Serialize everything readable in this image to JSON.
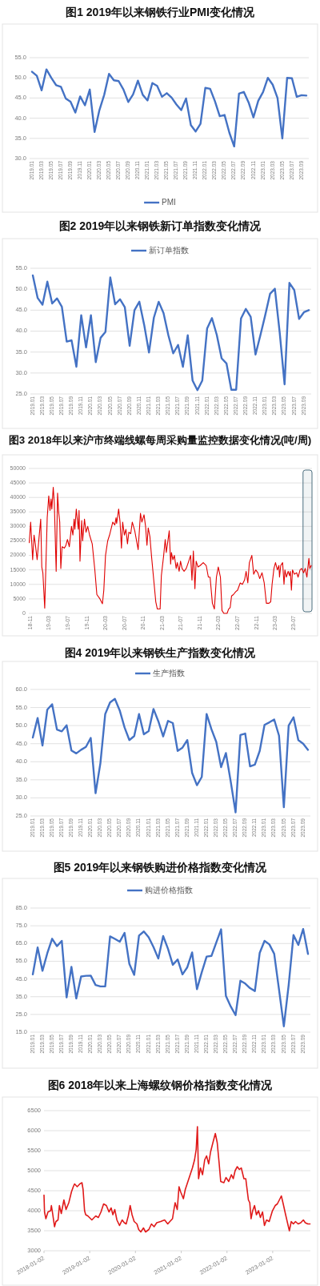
{
  "chart_data": [
    {
      "type": "line",
      "title": "图1 2019年以来钢铁行业PMI变化情况",
      "categories": [
        "2019.01",
        null,
        "2019.03",
        null,
        "2019.05",
        null,
        "2019.07",
        null,
        "2019.09",
        null,
        "2019.11",
        null,
        "2020.01",
        null,
        "2020.03",
        null,
        "2020.05",
        null,
        "2020.07",
        null,
        "2020.09",
        null,
        "2020.11",
        null,
        "2021.01",
        null,
        "2021.03",
        null,
        "2021.05",
        null,
        "2021.07",
        null,
        "2021.09",
        null,
        "2021.11",
        null,
        "2022.01",
        null,
        "2022.03",
        null,
        "2022.05",
        null,
        "2022.07",
        null,
        "2022.09",
        null,
        "2022.11",
        null,
        "2023.01",
        null,
        "2023.03",
        null,
        "2023.05",
        null,
        "2023.07",
        null,
        "2023.09",
        null
      ],
      "series": [
        {
          "name": "PMI",
          "color": "#4472c4",
          "values": [
            51.5,
            50.5,
            46.9,
            52.1,
            50.0,
            48.2,
            47.8,
            44.9,
            44.1,
            41.4,
            45.4,
            43.2,
            47.1,
            36.6,
            42.0,
            45.8,
            51.0,
            49.4,
            49.2,
            47.1,
            44.0,
            45.9,
            49.3,
            45.8,
            44.4,
            48.7,
            48.0,
            45.3,
            46.2,
            45.1,
            43.4,
            42.0,
            44.9,
            38.3,
            36.7,
            38.6,
            47.5,
            47.3,
            44.2,
            40.5,
            40.8,
            36.4,
            33.0,
            46.1,
            46.5,
            43.9,
            40.2,
            44.3,
            46.5,
            50.0,
            48.3,
            45.0,
            35.0,
            50.0,
            49.9,
            45.3,
            45.7,
            45.6
          ]
        }
      ],
      "ylim": [
        30,
        55
      ],
      "yticks": [
        {
          "value": 30,
          "label": "30.0"
        },
        {
          "value": 35,
          "label": "35.0"
        },
        {
          "value": 40,
          "label": "40.0"
        },
        {
          "value": 45,
          "label": "45.0"
        },
        {
          "value": 50,
          "label": "50.0"
        },
        {
          "value": 55,
          "label": "55.0"
        }
      ],
      "grid": "y",
      "legend": "bottom"
    },
    {
      "type": "line",
      "title": "图2 2019年以来钢铁新订单指数变化情况",
      "categories": [
        "2019.01",
        null,
        "2019.03",
        null,
        "2019.05",
        null,
        "2019.07",
        null,
        "2019.09",
        null,
        "2019.11",
        null,
        "2020.01",
        null,
        "2020.03",
        null,
        "2020.05",
        null,
        "2020.07",
        null,
        "2020.09",
        null,
        "2020.11",
        null,
        "2021.01",
        null,
        "2021.03",
        null,
        "2021.05",
        null,
        "2021.07",
        null,
        "2021.09",
        null,
        "2021.11",
        null,
        "2022.01",
        null,
        "2022.03",
        null,
        "2022.05",
        null,
        "2022.07",
        null,
        "2022.09",
        null,
        "2022.11",
        null,
        "2023.01",
        null,
        "2023.03",
        null,
        "2023.05",
        null,
        "2023.07",
        null,
        "2023.09",
        null
      ],
      "series": [
        {
          "name": "新订单指数",
          "color": "#4472c4",
          "values": [
            53.3,
            47.9,
            46.3,
            51.8,
            46.6,
            47.8,
            45.8,
            37.5,
            37.8,
            31.5,
            43.8,
            36.1,
            43.8,
            32.6,
            38.4,
            39.8,
            52.8,
            46.4,
            47.6,
            45.7,
            36.5,
            45.0,
            47.0,
            41.5,
            34.9,
            43.2,
            47.0,
            44.3,
            39.0,
            34.7,
            36.7,
            31.5,
            39.0,
            28.2,
            25.9,
            28.2,
            40.6,
            43.1,
            39.1,
            33.5,
            32.3,
            26.0,
            26.0,
            43.0,
            45.3,
            43.4,
            34.4,
            39.0,
            43.8,
            48.9,
            50.1,
            39.6,
            27.3,
            51.5,
            49.8,
            42.9,
            44.5,
            45.0
          ]
        }
      ],
      "ylim": [
        25,
        55
      ],
      "yticks": [
        {
          "value": 25,
          "label": "25.0"
        },
        {
          "value": 30,
          "label": "30.0"
        },
        {
          "value": 35,
          "label": "35.0"
        },
        {
          "value": 40,
          "label": "40.0"
        },
        {
          "value": 45,
          "label": "45.0"
        },
        {
          "value": 50,
          "label": "50.0"
        },
        {
          "value": 55,
          "label": "55.0"
        }
      ],
      "grid": "y",
      "legend": "top"
    },
    {
      "type": "line",
      "title": "图3 2018年以来沪市终端线螺每周采购量监控数据变化情况(吨/周)",
      "x": [
        "2018-10-23",
        "2018-11-01",
        "2018-11-14",
        "2018-11-23",
        "2018-12-01",
        "2018-12-13",
        "2018-12-25",
        "2019-01-05",
        "2019-01-12",
        "2019-01-19",
        "2019-01-31",
        "2019-02-16",
        "2019-02-26",
        "2019-03-06",
        "2019-03-13",
        "2019-03-18",
        "2019-03-27",
        "2019-04-03",
        "2019-04-15",
        "2019-04-24",
        "2019-05-01",
        "2019-05-08",
        "2019-05-15",
        "2019-05-23",
        "2019-06-07",
        "2019-06-17",
        "2019-06-27",
        "2019-07-09",
        "2019-07-23",
        "2019-08-01",
        "2019-08-09",
        "2019-08-14",
        "2019-08-23",
        "2019-09-05",
        "2019-09-10",
        "2019-09-16",
        "2019-09-27",
        "2019-10-03",
        "2019-10-15",
        "2019-10-25",
        "2019-11-05",
        "2019-11-17",
        "2019-12-04",
        "2019-12-21",
        "2020-01-03",
        "2020-01-23",
        "2020-02-08",
        "2020-02-17",
        "2020-02-28",
        "2020-03-13",
        "2020-03-25",
        "2020-04-15",
        "2020-04-28",
        "2020-05-06",
        "2020-05-10",
        "2020-05-23",
        "2020-06-01",
        "2020-06-10",
        "2020-06-18",
        "2020-06-29",
        "2020-07-09",
        "2020-07-19",
        "2020-07-28",
        "2020-08-09",
        "2020-08-19",
        "2020-09-04",
        "2020-09-26",
        "2020-10-11",
        "2020-10-20",
        "2020-11-03",
        "2020-11-13",
        "2020-11-22",
        "2020-11-30",
        "2020-12-11",
        "2020-12-21",
        "2021-01-04",
        "2021-01-18",
        "2021-01-28",
        "2021-02-15",
        "2021-02-23",
        "2021-03-10",
        "2021-03-20",
        "2021-03-27",
        "2021-04-05",
        "2021-04-15",
        "2021-04-24",
        "2021-04-29",
        "2021-05-09",
        "2021-05-18",
        "2021-05-30",
        "2021-06-06",
        "2021-06-18",
        "2021-06-27",
        "2021-07-07",
        "2021-07-20",
        "2021-08-03",
        "2021-08-19",
        "2021-08-31",
        "2021-09-09",
        "2021-09-18",
        "2021-09-28",
        "2021-10-06",
        "2021-10-18",
        "2021-11-01",
        "2021-11-21",
        "2021-12-10",
        "2021-12-24",
        "2022-01-04",
        "2022-01-19",
        "2022-02-01",
        "2022-02-14",
        "2022-02-26",
        "2022-03-12",
        "2022-03-22",
        "2022-04-03",
        "2022-04-24",
        "2022-05-04",
        "2022-05-14",
        "2022-05-23",
        "2022-06-04",
        "2022-06-19",
        "2022-07-01",
        "2022-07-18",
        "2022-08-01",
        "2022-08-15",
        "2022-08-25",
        "2022-09-05",
        "2022-09-15",
        "2022-10-01",
        "2022-10-13",
        "2022-10-26",
        "2022-11-09",
        "2022-11-21",
        "2022-12-06",
        "2022-12-20",
        "2023-01-03",
        "2023-01-20",
        "2023-01-31",
        "2023-02-09",
        "2023-02-21",
        "2023-03-03",
        "2023-03-15",
        "2023-03-25",
        "2023-03-29",
        "2023-04-06",
        "2023-04-18",
        "2023-04-27",
        "2023-05-03",
        "2023-05-12",
        "2023-05-24",
        "2023-06-02",
        "2023-06-07",
        "2023-06-14",
        "2023-06-21",
        "2023-07-03",
        "2023-07-18",
        "2023-07-27",
        "2023-08-09",
        "2023-08-19",
        "2023-09-01",
        "2023-09-11",
        "2023-09-22",
        "2023-10-05",
        "2023-10-11",
        "2023-10-20"
      ],
      "series": [
        {
          "color": "#e00000",
          "values": [
            24400,
            31500,
            18500,
            27000,
            24000,
            18500,
            26000,
            32500,
            16000,
            14000,
            1800,
            33000,
            40500,
            35500,
            39500,
            36000,
            43500,
            38000,
            14500,
            41500,
            35000,
            31500,
            15500,
            23000,
            22500,
            23500,
            25500,
            23000,
            30000,
            27000,
            32500,
            29000,
            36000,
            29000,
            35500,
            18000,
            32000,
            25000,
            32500,
            28000,
            30000,
            27000,
            24000,
            15000,
            6500,
            5000,
            3300,
            8000,
            20000,
            25000,
            27000,
            31500,
            30500,
            33000,
            31000,
            36000,
            31500,
            22500,
            31500,
            27000,
            29000,
            24000,
            28000,
            27500,
            31500,
            28500,
            22000,
            34500,
            31500,
            34000,
            30000,
            23500,
            29500,
            26500,
            20000,
            12000,
            4000,
            1500,
            1500,
            13000,
            20000,
            25500,
            21000,
            24500,
            28500,
            17000,
            21000,
            18500,
            20000,
            15500,
            17500,
            14500,
            18000,
            15500,
            14500,
            15500,
            18000,
            20000,
            11500,
            21500,
            8500,
            18000,
            16000,
            16500,
            17500,
            16500,
            12500,
            12500,
            3500,
            1500,
            12500,
            16000,
            12500,
            1000,
            0,
            0,
            1500,
            2000,
            6000,
            6500,
            7500,
            8000,
            10500,
            10000,
            11500,
            14500,
            10500,
            17500,
            20000,
            13500,
            15000,
            14000,
            12000,
            14000,
            10500,
            3500,
            3500,
            4000,
            10000,
            15500,
            17500,
            15000,
            16500,
            12500,
            16500,
            17500,
            10000,
            15000,
            12500,
            14500,
            13000,
            14500,
            8000,
            15000,
            13500,
            14000,
            12500,
            15000,
            15500,
            14000,
            15500,
            12500,
            19000,
            15500,
            16500
          ]
        }
      ],
      "xlim": [
        "2018-10-20",
        "2023-10-25"
      ],
      "xticks": [
        {
          "value": "2018-11-01",
          "label": "18-11"
        },
        {
          "value": "2019-03-01",
          "label": "19-03"
        },
        {
          "value": "2019-07-01",
          "label": "19-07"
        },
        {
          "value": "2019-11-01",
          "label": "19-11"
        },
        {
          "value": "2020-03-01",
          "label": "20-03"
        },
        {
          "value": "2020-07-01",
          "label": "20-07"
        },
        {
          "value": "2020-11-01",
          "label": "20-11"
        },
        {
          "value": "2021-03-01",
          "label": "21-03"
        },
        {
          "value": "2021-07-01",
          "label": "21-07"
        },
        {
          "value": "2021-11-01",
          "label": "21-11"
        },
        {
          "value": "2022-03-01",
          "label": "22-03"
        },
        {
          "value": "2022-07-01",
          "label": "22-07"
        },
        {
          "value": "2022-11-01",
          "label": "22-11"
        },
        {
          "value": "2023-03-01",
          "label": "23-03"
        },
        {
          "value": "2023-07-01",
          "label": "23-07"
        }
      ],
      "ylim": [
        0,
        50000
      ],
      "yticks": [
        0,
        5000,
        10000,
        15000,
        20000,
        25000,
        30000,
        35000,
        40000,
        45000,
        50000
      ],
      "grid": "y",
      "bands": [
        {
          "axis": "x",
          "from": "2023-08-28",
          "to": "2023-10-25",
          "color": "#4d6f7f"
        }
      ]
    },
    {
      "type": "line",
      "title": "图4 2019年以来钢铁生产指数变化情况",
      "categories": [
        "2019.01",
        null,
        "2019.03",
        null,
        "2019.05",
        null,
        "2019.07",
        null,
        "2019.09",
        null,
        "2019.11",
        null,
        "2020.01",
        null,
        "2020.03",
        null,
        "2020.05",
        null,
        "2020.07",
        null,
        "2020.09",
        null,
        "2020.11",
        null,
        "2021.01",
        null,
        "2021.03",
        null,
        "2021.05",
        null,
        "2021.07",
        null,
        "2021.09",
        null,
        "2021.11",
        null,
        "2022.01",
        null,
        "2022.03",
        null,
        "2022.05",
        null,
        "2022.07",
        null,
        "2022.09",
        null,
        "2022.11",
        null,
        "2023.01",
        null,
        "2023.03",
        null,
        "2023.05",
        null,
        "2023.07",
        null,
        "2023.09",
        null
      ],
      "series": [
        {
          "name": "生产指数",
          "color": "#4472c4",
          "values": [
            46.7,
            52.1,
            44.5,
            54.4,
            55.9,
            48.9,
            48.4,
            50.1,
            43.1,
            42.3,
            43.3,
            44.1,
            46.6,
            31.3,
            39.6,
            53.2,
            56.4,
            57.4,
            54.2,
            49.5,
            46.0,
            47.1,
            53.2,
            47.6,
            48.5,
            54.6,
            51.2,
            47.0,
            51.3,
            50.7,
            43.0,
            43.9,
            46.0,
            36.9,
            33.5,
            35.8,
            53.2,
            49.0,
            45.5,
            38.5,
            42.4,
            34.5,
            26.0,
            47.4,
            47.8,
            38.7,
            39.2,
            43.0,
            50.2,
            50.9,
            51.7,
            47.2,
            27.4,
            50.0,
            52.3,
            46.0,
            45.0,
            43.3
          ]
        }
      ],
      "ylim": [
        25,
        60
      ],
      "yticks": [
        {
          "value": 25,
          "label": "25.0"
        },
        {
          "value": 30,
          "label": "30.0"
        },
        {
          "value": 35,
          "label": "35.0"
        },
        {
          "value": 40,
          "label": "40.0"
        },
        {
          "value": 45,
          "label": "45.0"
        },
        {
          "value": 50,
          "label": "50.0"
        },
        {
          "value": 55,
          "label": "55.0"
        },
        {
          "value": 60,
          "label": "60.0"
        }
      ],
      "grid": "y",
      "legend": "top"
    },
    {
      "type": "line",
      "title": "图5 2019年以来钢铁购进价格指数变化情况",
      "categories": [
        "2019.01",
        null,
        "2019.03",
        null,
        "2019.05",
        null,
        "2019.07",
        null,
        "2019.09",
        null,
        "2019.11",
        null,
        "2020.01",
        null,
        "2020.03",
        null,
        "2020.05",
        null,
        "2020.07",
        null,
        "2020.09",
        null,
        "2020.11",
        null,
        "2021.01",
        null,
        "2021.03",
        null,
        "2021.05",
        null,
        "2021.07",
        null,
        "2021.09",
        null,
        "2021.11",
        null,
        "2022.01",
        null,
        "2022.03",
        null,
        "2022.05",
        null,
        "2022.07",
        null,
        "2022.09",
        null,
        "2022.11",
        null,
        "2023.01",
        null,
        "2023.03",
        null,
        "2023.05",
        null,
        "2023.07",
        null,
        "2023.09",
        null
      ],
      "series": [
        {
          "name": "购进价格指数",
          "color": "#4472c4",
          "values": [
            47.6,
            62.8,
            49.6,
            59.5,
            67.7,
            63.5,
            66.5,
            34.6,
            51.8,
            34.0,
            46.4,
            46.8,
            46.9,
            41.6,
            40.8,
            40.8,
            69.0,
            67.6,
            66.0,
            71.0,
            53.5,
            47.3,
            69.5,
            71.8,
            68.5,
            63.0,
            56.5,
            69.2,
            62.0,
            53.0,
            56.0,
            47.6,
            51.6,
            60.0,
            39.2,
            48.8,
            57.6,
            58.0,
            65.5,
            73.0,
            35.4,
            29.5,
            24.6,
            44.0,
            42.4,
            39.8,
            38.2,
            59.7,
            66.5,
            64.5,
            59.2,
            39.0,
            18.3,
            41.6,
            69.8,
            64.2,
            73.2,
            59.1
          ]
        }
      ],
      "ylim": [
        15,
        85
      ],
      "yticks": [
        {
          "value": 15,
          "label": "15.0"
        },
        {
          "value": 25,
          "label": "25.0"
        },
        {
          "value": 35,
          "label": "35.0"
        },
        {
          "value": 45,
          "label": "45.0"
        },
        {
          "value": 55,
          "label": "55.0"
        },
        {
          "value": 65,
          "label": "65.0"
        },
        {
          "value": 75,
          "label": "75.0"
        },
        {
          "value": 85,
          "label": "85.0"
        }
      ],
      "grid": "y",
      "legend": "top"
    },
    {
      "type": "line",
      "title": "图6 2018年以来上海螺纹钢价格指数变化情况",
      "x": [
        "2018-01-02",
        "2018-01-06",
        "2018-01-17",
        "2018-02-03",
        "2018-02-24",
        "2018-03-02",
        "2018-03-12",
        "2018-03-27",
        "2018-04-07",
        "2018-04-24",
        "2018-05-05",
        "2018-05-20",
        "2018-06-10",
        "2018-06-27",
        "2018-07-19",
        "2018-08-09",
        "2018-08-24",
        "2018-09-03",
        "2018-09-24",
        "2018-10-15",
        "2018-11-01",
        "2018-11-10",
        "2018-11-22",
        "2018-12-01",
        "2018-12-18",
        "2019-01-19",
        "2019-02-19",
        "2019-03-12",
        "2019-04-02",
        "2019-04-23",
        "2019-05-15",
        "2019-06-05",
        "2019-06-22",
        "2019-07-06",
        "2019-07-21",
        "2019-08-07",
        "2019-08-28",
        "2019-09-18",
        "2019-10-05",
        "2019-10-20",
        "2019-11-06",
        "2019-11-21",
        "2019-12-06",
        "2019-12-23",
        "2020-01-14",
        "2020-01-28",
        "2020-02-14",
        "2020-03-06",
        "2020-03-23",
        "2020-04-18",
        "2020-05-09",
        "2020-05-30",
        "2020-06-20",
        "2020-07-21",
        "2020-08-22",
        "2020-09-16",
        "2020-10-03",
        "2020-10-24",
        "2020-11-03",
        "2020-11-14",
        "2020-12-01",
        "2020-12-15",
        "2020-12-28",
        "2021-01-19",
        "2021-02-03",
        "2021-02-24",
        "2021-03-11",
        "2021-04-01",
        "2021-04-18",
        "2021-05-01",
        "2021-05-11",
        "2021-05-20",
        "2021-06-04",
        "2021-06-21",
        "2021-07-08",
        "2021-07-23",
        "2021-08-09",
        "2021-08-24",
        "2021-09-14",
        "2021-10-01",
        "2021-10-16",
        "2021-10-31",
        "2021-11-13",
        "2021-12-08",
        "2021-12-25",
        "2022-01-16",
        "2022-02-06",
        "2022-02-21",
        "2022-03-08",
        "2022-03-25",
        "2022-04-11",
        "2022-04-26",
        "2022-05-17",
        "2022-06-01",
        "2022-06-14",
        "2022-06-22",
        "2022-07-03",
        "2022-07-13",
        "2022-07-26",
        "2022-08-10",
        "2022-08-25",
        "2022-09-11",
        "2022-09-26",
        "2022-10-13",
        "2022-10-28",
        "2022-11-14",
        "2022-12-05",
        "2022-12-31",
        "2023-01-22",
        "2023-02-08",
        "2023-03-01",
        "2023-03-12",
        "2023-03-27",
        "2023-04-13",
        "2023-04-30",
        "2023-05-15",
        "2023-05-30",
        "2023-06-16",
        "2023-07-03",
        "2023-07-24",
        "2023-08-14",
        "2023-09-04",
        "2023-09-19",
        "2023-10-10",
        "2023-10-27"
      ],
      "series": [
        {
          "color": "#e01a1a",
          "values": [
            4390,
            3970,
            3800,
            3970,
            4000,
            4130,
            3930,
            3600,
            3730,
            3770,
            4130,
            3930,
            4270,
            4030,
            4200,
            4470,
            4600,
            4670,
            4600,
            4670,
            4700,
            4530,
            4000,
            3900,
            3870,
            3770,
            3870,
            3830,
            3970,
            4170,
            4130,
            3970,
            4070,
            3900,
            4030,
            3770,
            3630,
            3770,
            3700,
            3670,
            3870,
            4130,
            3900,
            3730,
            3670,
            3530,
            3470,
            3570,
            3470,
            3530,
            3670,
            3600,
            3700,
            3730,
            3770,
            3670,
            3730,
            3800,
            4000,
            4200,
            4030,
            4600,
            4470,
            4300,
            4530,
            4730,
            4870,
            5070,
            5270,
            5530,
            6100,
            4800,
            5070,
            4900,
            5270,
            5370,
            5170,
            5470,
            5730,
            5930,
            5700,
            5200,
            4730,
            4700,
            4830,
            4730,
            4900,
            4800,
            5000,
            5100,
            5030,
            5070,
            4800,
            4800,
            4470,
            4270,
            4200,
            3800,
            4000,
            4130,
            3900,
            4000,
            3830,
            3970,
            3630,
            3770,
            3730,
            4000,
            4130,
            4170,
            4300,
            4370,
            4170,
            3930,
            3700,
            3500,
            3730,
            3670,
            3730,
            3670,
            3700,
            3770,
            3700,
            3670,
            3670
          ]
        }
      ],
      "xlim": [
        "2018-01-02",
        "2023-10-30"
      ],
      "xticks": [
        "2018-01-02",
        "2019-01-02",
        "2020-01-02",
        "2021-01-02",
        "2022-01-02",
        "2023-01-02"
      ],
      "ylim": [
        3000,
        6500
      ],
      "yticks": [
        3000,
        3500,
        4000,
        4500,
        5000,
        5500,
        6000,
        6500
      ],
      "grid": "y"
    }
  ]
}
